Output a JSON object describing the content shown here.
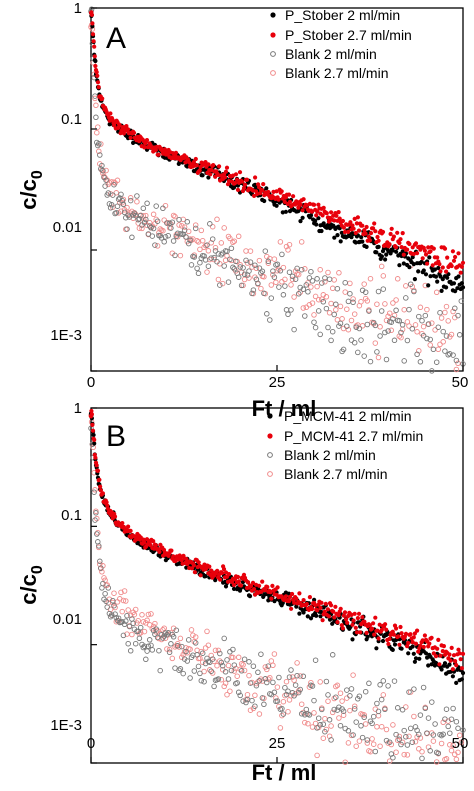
{
  "chart_data": [
    {
      "type": "scatter",
      "panel_label": "A",
      "xlabel": "Ft / ml",
      "ylabel_main": "c/c",
      "ylabel_sub": "0",
      "xlim": [
        0,
        50
      ],
      "ylim": [
        0.001,
        1
      ],
      "yscale": "log",
      "x_ticks": [
        0,
        25,
        50
      ],
      "x_tick_labels": [
        "0",
        "25",
        "50"
      ],
      "y_ticks": [
        1,
        0.1,
        0.01,
        0.001
      ],
      "y_tick_labels": [
        "1",
        "0.1",
        "0.01",
        "1E-3"
      ],
      "grid": false,
      "legend_position": "top-right",
      "series": [
        {
          "name": "P_Stober 2 ml/min",
          "color": "#000000",
          "marker": "filled-circle",
          "points": [
            [
              0.1,
              0.9
            ],
            [
              0.3,
              0.55
            ],
            [
              0.5,
              0.38
            ],
            [
              0.8,
              0.26
            ],
            [
              1.2,
              0.18
            ],
            [
              1.8,
              0.14
            ],
            [
              2.5,
              0.12
            ],
            [
              3.5,
              0.105
            ],
            [
              5,
              0.09
            ],
            [
              7,
              0.075
            ],
            [
              10,
              0.062
            ],
            [
              13,
              0.052
            ],
            [
              16,
              0.044
            ],
            [
              19,
              0.037
            ],
            [
              22,
              0.031
            ],
            [
              25,
              0.026
            ],
            [
              28,
              0.021
            ],
            [
              31,
              0.017
            ],
            [
              34,
              0.014
            ],
            [
              37,
              0.012
            ],
            [
              40,
              0.0098
            ],
            [
              43,
              0.0078
            ],
            [
              46,
              0.0063
            ],
            [
              48,
              0.0055
            ],
            [
              50,
              0.005
            ]
          ]
        },
        {
          "name": "P_Stober 2.7 ml/min",
          "color": "#e8000b",
          "marker": "filled-circle",
          "points": [
            [
              0.1,
              0.92
            ],
            [
              0.3,
              0.58
            ],
            [
              0.5,
              0.4
            ],
            [
              0.8,
              0.28
            ],
            [
              1.2,
              0.19
            ],
            [
              1.8,
              0.15
            ],
            [
              2.5,
              0.125
            ],
            [
              3.5,
              0.108
            ],
            [
              5,
              0.092
            ],
            [
              7,
              0.078
            ],
            [
              10,
              0.064
            ],
            [
              13,
              0.054
            ],
            [
              16,
              0.046
            ],
            [
              19,
              0.039
            ],
            [
              22,
              0.033
            ],
            [
              25,
              0.028
            ],
            [
              28,
              0.024
            ],
            [
              31,
              0.02
            ],
            [
              34,
              0.017
            ],
            [
              37,
              0.0145
            ],
            [
              40,
              0.0125
            ],
            [
              43,
              0.0105
            ],
            [
              46,
              0.009
            ],
            [
              48,
              0.0082
            ],
            [
              50,
              0.0075
            ]
          ]
        },
        {
          "name": "Blank 2 ml/min",
          "color": "#777777",
          "marker": "open-circle",
          "points": [
            [
              0.1,
              0.8
            ],
            [
              0.3,
              0.35
            ],
            [
              0.5,
              0.18
            ],
            [
              0.8,
              0.09
            ],
            [
              1.2,
              0.055
            ],
            [
              1.8,
              0.035
            ],
            [
              2.5,
              0.028
            ],
            [
              3.5,
              0.023
            ],
            [
              5,
              0.02
            ],
            [
              7,
              0.017
            ],
            [
              10,
              0.014
            ],
            [
              13,
              0.011
            ],
            [
              16,
              0.009
            ],
            [
              19,
              0.0075
            ],
            [
              22,
              0.0063
            ],
            [
              25,
              0.0052
            ],
            [
              28,
              0.0043
            ],
            [
              31,
              0.0036
            ],
            [
              34,
              0.003
            ],
            [
              37,
              0.0026
            ],
            [
              40,
              0.0022
            ],
            [
              43,
              0.0019
            ],
            [
              46,
              0.0016
            ],
            [
              48,
              0.0015
            ],
            [
              50,
              0.0014
            ]
          ]
        },
        {
          "name": "Blank 2.7 ml/min",
          "color": "#f08a8a",
          "marker": "open-circle",
          "points": [
            [
              0.1,
              0.85
            ],
            [
              0.3,
              0.4
            ],
            [
              0.5,
              0.2
            ],
            [
              0.8,
              0.1
            ],
            [
              1.2,
              0.06
            ],
            [
              1.8,
              0.04
            ],
            [
              2.5,
              0.03
            ],
            [
              3.5,
              0.026
            ],
            [
              5,
              0.022
            ],
            [
              7,
              0.019
            ],
            [
              10,
              0.016
            ],
            [
              13,
              0.013
            ],
            [
              16,
              0.0105
            ],
            [
              19,
              0.0088
            ],
            [
              22,
              0.0074
            ],
            [
              25,
              0.0062
            ],
            [
              28,
              0.0052
            ],
            [
              31,
              0.0044
            ],
            [
              34,
              0.0037
            ],
            [
              37,
              0.0032
            ],
            [
              40,
              0.0028
            ],
            [
              43,
              0.0024
            ],
            [
              46,
              0.0021
            ],
            [
              48,
              0.0019
            ],
            [
              50,
              0.0018
            ]
          ]
        }
      ]
    },
    {
      "type": "scatter",
      "panel_label": "B",
      "xlabel": "Ft / ml",
      "ylabel_main": "c/c",
      "ylabel_sub": "0",
      "xlim": [
        0,
        50
      ],
      "ylim": [
        0.001,
        1
      ],
      "yscale": "log",
      "x_ticks": [
        0,
        25,
        50
      ],
      "x_tick_labels": [
        "0",
        "25",
        "50"
      ],
      "y_ticks": [
        1,
        0.1,
        0.01,
        0.001
      ],
      "y_tick_labels": [
        "1",
        "0.1",
        "0.01",
        "1E-3"
      ],
      "grid": false,
      "legend_position": "top-right",
      "series": [
        {
          "name": "P_MCM-41 2 ml/min",
          "color": "#000000",
          "marker": "filled-circle",
          "points": [
            [
              0.1,
              0.9
            ],
            [
              0.3,
              0.6
            ],
            [
              0.5,
              0.42
            ],
            [
              0.8,
              0.3
            ],
            [
              1.2,
              0.21
            ],
            [
              1.8,
              0.16
            ],
            [
              2.5,
              0.13
            ],
            [
              3.5,
              0.108
            ],
            [
              5,
              0.088
            ],
            [
              7,
              0.072
            ],
            [
              10,
              0.058
            ],
            [
              13,
              0.048
            ],
            [
              16,
              0.04
            ],
            [
              19,
              0.034
            ],
            [
              22,
              0.029
            ],
            [
              25,
              0.025
            ],
            [
              28,
              0.021
            ],
            [
              31,
              0.018
            ],
            [
              34,
              0.015
            ],
            [
              37,
              0.013
            ],
            [
              40,
              0.011
            ],
            [
              43,
              0.0092
            ],
            [
              46,
              0.0075
            ],
            [
              48,
              0.0064
            ],
            [
              50,
              0.0055
            ]
          ]
        },
        {
          "name": "P_MCM-41 2.7 ml/min",
          "color": "#e8000b",
          "marker": "filled-circle",
          "points": [
            [
              0.1,
              0.93
            ],
            [
              0.3,
              0.62
            ],
            [
              0.5,
              0.44
            ],
            [
              0.8,
              0.31
            ],
            [
              1.2,
              0.22
            ],
            [
              1.8,
              0.165
            ],
            [
              2.5,
              0.133
            ],
            [
              3.5,
              0.11
            ],
            [
              5,
              0.09
            ],
            [
              7,
              0.074
            ],
            [
              10,
              0.06
            ],
            [
              13,
              0.05
            ],
            [
              16,
              0.042
            ],
            [
              19,
              0.036
            ],
            [
              22,
              0.031
            ],
            [
              25,
              0.027
            ],
            [
              28,
              0.023
            ],
            [
              31,
              0.02
            ],
            [
              34,
              0.017
            ],
            [
              37,
              0.015
            ],
            [
              40,
              0.013
            ],
            [
              43,
              0.0112
            ],
            [
              46,
              0.0095
            ],
            [
              48,
              0.0085
            ],
            [
              50,
              0.0075
            ]
          ]
        },
        {
          "name": "Blank 2 ml/min",
          "color": "#777777",
          "marker": "open-circle",
          "points": [
            [
              0.1,
              0.8
            ],
            [
              0.3,
              0.35
            ],
            [
              0.5,
              0.17
            ],
            [
              0.8,
              0.08
            ],
            [
              1.2,
              0.045
            ],
            [
              1.8,
              0.028
            ],
            [
              2.5,
              0.02
            ],
            [
              3.5,
              0.016
            ],
            [
              5,
              0.013
            ],
            [
              7,
              0.011
            ],
            [
              10,
              0.009
            ],
            [
              13,
              0.0075
            ],
            [
              16,
              0.0063
            ],
            [
              19,
              0.0055
            ],
            [
              22,
              0.0048
            ],
            [
              25,
              0.0042
            ],
            [
              28,
              0.0037
            ],
            [
              31,
              0.0033
            ],
            [
              34,
              0.003
            ],
            [
              37,
              0.0027
            ],
            [
              40,
              0.0024
            ],
            [
              43,
              0.0022
            ],
            [
              46,
              0.002
            ],
            [
              48,
              0.0019
            ],
            [
              50,
              0.0018
            ]
          ]
        },
        {
          "name": "Blank 2.7 ml/min",
          "color": "#f08a8a",
          "marker": "open-circle",
          "points": [
            [
              0.1,
              0.85
            ],
            [
              0.3,
              0.4
            ],
            [
              0.5,
              0.2
            ],
            [
              0.8,
              0.1
            ],
            [
              1.2,
              0.055
            ],
            [
              1.8,
              0.035
            ],
            [
              2.5,
              0.026
            ],
            [
              3.5,
              0.022
            ],
            [
              5,
              0.019
            ],
            [
              7,
              0.016
            ],
            [
              10,
              0.012
            ],
            [
              13,
              0.0095
            ],
            [
              16,
              0.0075
            ],
            [
              19,
              0.006
            ],
            [
              22,
              0.0048
            ],
            [
              25,
              0.0039
            ],
            [
              28,
              0.0032
            ],
            [
              31,
              0.0027
            ],
            [
              34,
              0.0023
            ],
            [
              37,
              0.002
            ],
            [
              40,
              0.0018
            ],
            [
              43,
              0.0016
            ],
            [
              46,
              0.0015
            ],
            [
              48,
              0.0014
            ],
            [
              50,
              0.0013
            ]
          ]
        }
      ]
    }
  ]
}
